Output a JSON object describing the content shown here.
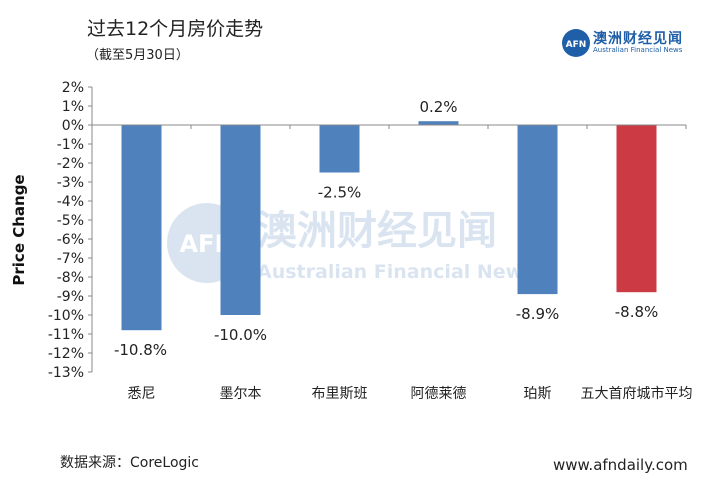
{
  "header": {
    "title": "过去12个月房价走势",
    "subtitle": "（截至5月30日）"
  },
  "logo": {
    "mark": "AFN",
    "cn": "澳洲财经见闻",
    "en": "Australian Financial News"
  },
  "watermark": {
    "cn": "澳洲财经见闻",
    "en": "Australian Financial News"
  },
  "footer": {
    "source": "数据来源：CoreLogic",
    "site": "www.afndaily.com"
  },
  "colors": {
    "bar_default": "#4f81bd",
    "bar_highlight": "#cc3a44",
    "brand": "#1f5fa8"
  },
  "chart_data": {
    "type": "bar",
    "title": "",
    "xlabel": "",
    "ylabel": "Price Change",
    "ylim": [
      -13,
      2
    ],
    "yticks": [
      "2%",
      "1%",
      "0%",
      "-1%",
      "-2%",
      "-3%",
      "-4%",
      "-5%",
      "-6%",
      "-7%",
      "-8%",
      "-9%",
      "-10%",
      "-11%",
      "-12%",
      "-13%"
    ],
    "categories": [
      "悉尼",
      "墨尔本",
      "布里斯班",
      "阿德莱德",
      "珀斯",
      "五大首府城市平均"
    ],
    "values": [
      -10.8,
      -10.0,
      -2.5,
      0.2,
      -8.9,
      -8.8
    ],
    "data_labels": [
      "-10.8%",
      "-10.0%",
      "-2.5%",
      "0.2%",
      "-8.9%",
      "-8.8%"
    ],
    "highlight_index": 5,
    "grid": false,
    "legend": "none"
  }
}
